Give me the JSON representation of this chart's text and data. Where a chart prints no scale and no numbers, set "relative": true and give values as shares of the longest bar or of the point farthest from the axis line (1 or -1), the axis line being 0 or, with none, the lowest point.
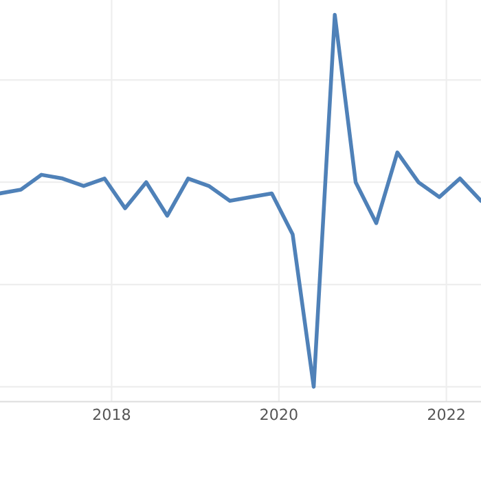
{
  "chart_data": {
    "type": "line",
    "relative": true,
    "grid": true,
    "tick_labels": "x",
    "marker": "none",
    "line_style": "solid",
    "x": [
      "2016-09",
      "2016-12",
      "2017-03",
      "2017-06",
      "2017-09",
      "2017-12",
      "2018-03",
      "2018-06",
      "2018-09",
      "2018-12",
      "2019-03",
      "2019-06",
      "2019-09",
      "2019-12",
      "2020-03",
      "2020-06",
      "2020-09",
      "2020-12",
      "2021-03",
      "2021-06",
      "2021-09",
      "2021-12",
      "2022-03",
      "2022-06"
    ],
    "xlim": [
      "2016-09",
      "2022-06"
    ],
    "xticks": [
      {
        "value": "2018-01",
        "label": "2018"
      },
      {
        "value": "2020-01",
        "label": "2020"
      },
      {
        "value": "2022-01",
        "label": "2022"
      }
    ],
    "series": [
      {
        "color": "#4f81b8",
        "values": [
          0.52,
          0.53,
          0.57,
          0.56,
          0.54,
          0.56,
          0.48,
          0.55,
          0.46,
          0.56,
          0.54,
          0.5,
          0.51,
          0.52,
          0.41,
          0,
          1,
          0.55,
          0.44,
          0.63,
          0.55,
          0.51,
          0.56,
          0.5
        ]
      }
    ]
  }
}
